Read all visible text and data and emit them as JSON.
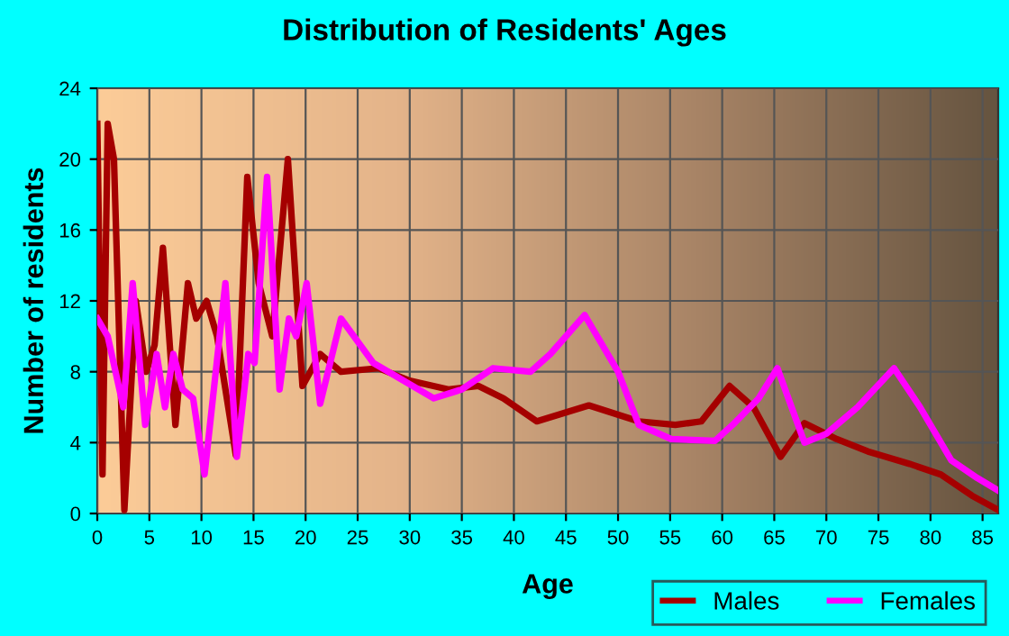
{
  "chart_data": {
    "type": "line",
    "title": "Distribution of Residents' Ages",
    "xlabel": "Age",
    "ylabel": "Number of residents",
    "xlim": [
      0,
      86.5
    ],
    "xticks": [
      0,
      5,
      10,
      15,
      20,
      25,
      30,
      35,
      40,
      45,
      50,
      55,
      60,
      65,
      70,
      75,
      80,
      85
    ],
    "ylim": [
      0,
      24
    ],
    "yticks": [
      0,
      4,
      8,
      12,
      16,
      20,
      24
    ],
    "grid": true,
    "legend": "bottom right",
    "marker": "none",
    "line_style": "solid",
    "series": [
      {
        "name": "Males",
        "color": "#a50000",
        "x": [
          0,
          0.5,
          1,
          1.6,
          2.6,
          3.7,
          4.7,
          5.5,
          6.3,
          7.5,
          8.7,
          9.5,
          10.5,
          11.5,
          13.3,
          14.4,
          15.5,
          16.8,
          18.3,
          19.7,
          21.4,
          23.4,
          27,
          30,
          33.7,
          36.6,
          39,
          42.2,
          47.2,
          52,
          55.5,
          58,
          60.7,
          63,
          65.6,
          67.9,
          71,
          74,
          78,
          81,
          84,
          86.5
        ],
        "values": [
          22,
          2.2,
          22,
          20,
          0.2,
          12,
          8,
          9.5,
          15,
          5,
          13,
          11,
          12,
          10,
          3.3,
          19,
          13,
          10,
          20,
          7.2,
          9,
          8,
          8.2,
          7.5,
          7,
          7.2,
          6.5,
          5.2,
          6.1,
          5.2,
          5,
          5.2,
          7.2,
          6,
          3.2,
          5.1,
          4.2,
          3.5,
          2.8,
          2.2,
          1,
          0.2
        ]
      },
      {
        "name": "Females",
        "color": "#ff00ff",
        "x": [
          0,
          1,
          2.5,
          3.4,
          4.6,
          5.7,
          6.5,
          7.3,
          8.2,
          9.2,
          10.3,
          12.3,
          13.4,
          14.5,
          15.1,
          16.3,
          17.5,
          18.4,
          19.1,
          20.1,
          21.4,
          23.4,
          26.5,
          32.3,
          35,
          38,
          41.6,
          43.5,
          46.8,
          50,
          52,
          55.1,
          59.3,
          61,
          63.5,
          65.3,
          67.9,
          70,
          73,
          76.5,
          79,
          82,
          84.5,
          86.5
        ],
        "values": [
          11,
          10,
          6,
          13,
          5,
          9,
          6,
          9,
          7,
          6.5,
          2.2,
          13,
          3.2,
          9,
          8.5,
          19,
          7,
          11,
          10,
          13,
          6.2,
          11,
          8.5,
          6.5,
          7,
          8.2,
          8,
          9,
          11.2,
          8,
          5,
          4.2,
          4.1,
          5,
          6.5,
          8.2,
          4,
          4.5,
          6,
          8.2,
          6,
          3,
          2,
          1.3
        ]
      }
    ]
  }
}
